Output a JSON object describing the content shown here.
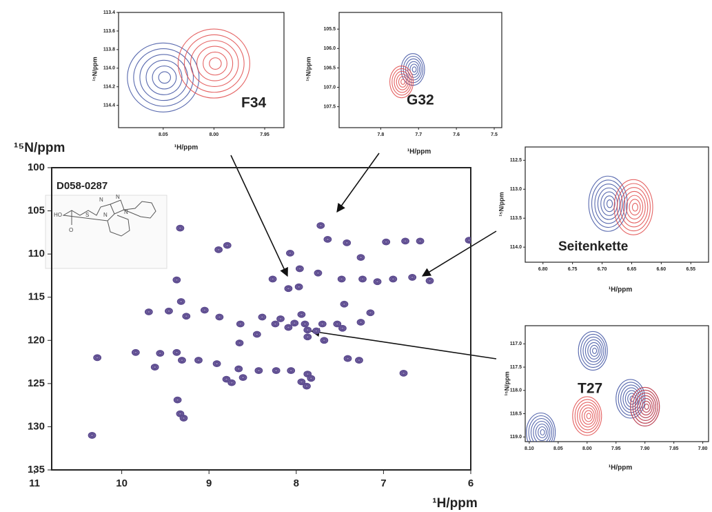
{
  "chart_data": [
    {
      "type": "scatter",
      "annotation": "D058-0287",
      "xlabel": "¹H/ppm",
      "ylabel": "¹⁵N/ppm",
      "xlim": [
        11,
        6
      ],
      "ylim": [
        135,
        100
      ],
      "xticks": [
        11,
        10,
        9,
        8,
        7,
        6
      ],
      "yticks": [
        100,
        105,
        110,
        115,
        120,
        125,
        130,
        135
      ],
      "series": [
        {
          "color": "#5b4a8e",
          "x": [
            9.33,
            7.72,
            7.64,
            8.79,
            8.89,
            8.07,
            7.26,
            7.42,
            6.97,
            6.75,
            6.58,
            6.02,
            7.96,
            7.75,
            8.09,
            7.97,
            8.27,
            7.48,
            7.24,
            7.07,
            6.89,
            6.67,
            6.47,
            9.37,
            9.32,
            9.69,
            9.46,
            9.26,
            9.05,
            8.88,
            8.64,
            8.39,
            8.24,
            8.18,
            8.09,
            8.02,
            7.94,
            7.9,
            7.7,
            7.87,
            7.77,
            7.47,
            7.53,
            7.26,
            8.65,
            8.45,
            7.87,
            7.68,
            7.45,
            7.15,
            9.12,
            8.91,
            9.31,
            9.56,
            9.37,
            9.62,
            8.66,
            8.43,
            8.23,
            8.06,
            7.87,
            7.83,
            7.41,
            7.28,
            6.77,
            7.94,
            7.88,
            8.74,
            8.61,
            9.36,
            9.33,
            9.29,
            10.34,
            10.28,
            9.84,
            8.8
          ],
          "y": [
            107.0,
            106.7,
            108.3,
            109.0,
            109.5,
            109.9,
            110.4,
            108.7,
            108.6,
            108.5,
            108.5,
            108.4,
            111.7,
            112.2,
            114.0,
            113.8,
            112.9,
            112.9,
            112.9,
            113.2,
            112.9,
            112.7,
            113.1,
            113.0,
            115.5,
            116.7,
            116.6,
            117.2,
            116.5,
            117.3,
            118.1,
            117.3,
            118.1,
            117.5,
            118.5,
            118.0,
            117.0,
            118.1,
            118.1,
            118.8,
            118.9,
            118.6,
            118.1,
            117.9,
            120.3,
            119.3,
            119.6,
            120.0,
            115.8,
            116.8,
            122.3,
            122.7,
            122.3,
            121.5,
            121.4,
            123.1,
            123.3,
            123.5,
            123.5,
            123.5,
            123.9,
            124.4,
            122.1,
            122.3,
            123.8,
            124.8,
            125.3,
            124.9,
            124.3,
            126.9,
            128.5,
            129.0,
            131.0,
            122.0,
            121.4,
            124.5
          ]
        }
      ]
    },
    {
      "type": "scatter",
      "annotation": "F34",
      "xlabel": "¹H/ppm",
      "ylabel": "¹⁵N/ppm",
      "xlim": [
        8.094,
        7.931
      ],
      "ylim": [
        114.64,
        113.4
      ],
      "xticks": [
        8.05,
        {
          "value": 8,
          "label": "8.00"
        },
        7.95
      ],
      "yticks": [
        113.4,
        113.6,
        113.8,
        {
          "value": 114,
          "label": "114.0"
        },
        114.2,
        114.4
      ],
      "series": [
        {
          "color": "#3b4fa0",
          "x": [
            8.05
          ],
          "y": [
            114.1
          ]
        },
        {
          "color": "#e04848",
          "x": [
            8.0
          ],
          "y": [
            113.95
          ]
        }
      ]
    },
    {
      "type": "scatter",
      "annotation": "G32",
      "xlabel": "¹H/ppm",
      "ylabel": "¹⁵N/ppm",
      "xlim": [
        7.91,
        7.48
      ],
      "ylim": [
        108.04,
        105.07
      ],
      "xticks": [
        7.8,
        7.7,
        7.6,
        7.5
      ],
      "yticks": [
        105.5,
        {
          "value": 106,
          "label": "106.0"
        },
        106.5,
        {
          "value": 107,
          "label": "107.0"
        },
        107.5
      ],
      "series": [
        {
          "color": "#3b4fa0",
          "x": [
            7.715
          ],
          "y": [
            106.54
          ]
        },
        {
          "color": "#e04848",
          "x": [
            7.745
          ],
          "y": [
            106.86
          ]
        }
      ]
    },
    {
      "type": "scatter",
      "annotation": "Seitenkette",
      "xlabel": "¹H/ppm",
      "ylabel": "¹⁵N/ppm",
      "xlim": [
        6.83,
        6.52
      ],
      "ylim": [
        114.26,
        112.27
      ],
      "xticks": [
        {
          "value": 6.8,
          "label": "6.80"
        },
        6.75,
        {
          "value": 6.7,
          "label": "6.70"
        },
        6.65,
        {
          "value": 6.6,
          "label": "6.60"
        },
        6.55
      ],
      "yticks": [
        112.5,
        {
          "value": 113,
          "label": "113.0"
        },
        113.5,
        {
          "value": 114,
          "label": "114.0"
        }
      ],
      "series": [
        {
          "color": "#3b4fa0",
          "x": [
            6.69
          ],
          "y": [
            113.25
          ]
        },
        {
          "color": "#e04848",
          "x": [
            6.647
          ],
          "y": [
            113.31
          ]
        }
      ]
    },
    {
      "type": "scatter",
      "annotation": "T27",
      "xlabel": "¹H/ppm",
      "ylabel": "¹⁵N/ppm",
      "xlim": [
        8.107,
        7.79
      ],
      "ylim": [
        119.1,
        116.61
      ],
      "xticks": [
        {
          "value": 8.1,
          "label": "8.10"
        },
        8.05,
        {
          "value": 8,
          "label": "8.00"
        },
        7.95,
        {
          "value": 7.9,
          "label": "7.90"
        },
        7.85,
        {
          "value": 7.8,
          "label": "7.80"
        }
      ],
      "yticks": [
        {
          "value": 117,
          "label": "117.0"
        },
        117.5,
        {
          "value": 118,
          "label": "118.0"
        },
        118.5,
        {
          "value": 119,
          "label": "119.0"
        }
      ],
      "series": [
        {
          "color": "#3b4fa0",
          "x": [
            7.99,
            7.925,
            7.9,
            8.08
          ],
          "y": [
            117.15,
            118.18,
            118.35,
            118.9
          ]
        },
        {
          "color": "#e04848",
          "x": [
            8.0,
            7.9
          ],
          "y": [
            118.55,
            118.35
          ]
        }
      ]
    }
  ],
  "structure": {
    "labels": [
      "HO",
      "O",
      "S",
      "N",
      "N",
      "N",
      "N"
    ]
  }
}
